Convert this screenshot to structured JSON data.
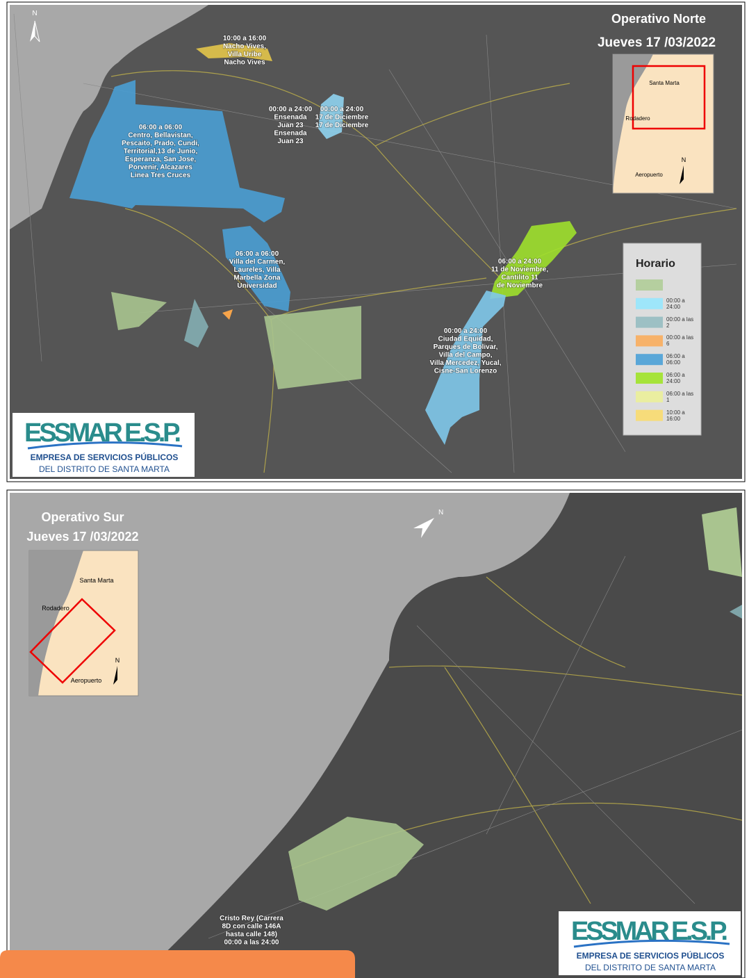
{
  "norte": {
    "north": "N",
    "title": "Operativo Norte",
    "date": "Jueves 17 /03/2022",
    "inset": {
      "labels": [
        "Santa Marta",
        "Rodadero",
        "Aeropuerto"
      ],
      "north": "N"
    },
    "zones": [
      {
        "color": "#e3c54a",
        "lines": [
          "10:00 a 16:00",
          "Nacho Vives,",
          "Villa Uribe",
          "Nacho Vives"
        ]
      },
      {
        "color": "#8fd3f0",
        "lines": [
          "00:00 a 24:00",
          "Ensenada",
          "Juan 23",
          "Ensenada",
          "Juan 23"
        ]
      },
      {
        "color": "#8fd3f0",
        "lines": [
          "00:00 a 24:00",
          "17 de Diciembre",
          "17 de Diciembre"
        ]
      },
      {
        "color": "#4a9fd4",
        "lines": [
          "06:00 a 06:00",
          "Centro, Bellavistan,",
          "Pescaito, Prado, Cundi,",
          "Territorial,13 de Junio,",
          "Esperanza, San Jose,",
          "Porvenir, Alcazares",
          "Linea Tres Cruces"
        ]
      },
      {
        "color": "#4a9fd4",
        "lines": [
          "06:00 a 06:00",
          "Villa del Carmen,",
          "Laureles, Villa",
          "Marbella Zona",
          "Universidad"
        ]
      },
      {
        "color": "#9ee02c",
        "lines": [
          "06:00 a 24:00",
          "11 de Noviembre,",
          "Cantilito 11",
          "de Noviembre"
        ]
      },
      {
        "color": "#7fc8ea",
        "lines": [
          "00:00 a 24:00",
          "Ciudad Equidad,",
          "Parques de Bolivar,",
          "Villa del Campo,",
          "Villa Mercedez, Yucal,",
          "Cisne-San Lorenzo"
        ]
      }
    ],
    "legend": {
      "title": "Horario",
      "items": [
        {
          "color": "#b5cf9f"
        },
        {
          "color": "#9ee6fa",
          "label": "00:00 a 24:00"
        },
        {
          "color": "#9dc0c4",
          "label": "00:00 a las 2"
        },
        {
          "color": "#f7b26a",
          "label": "00:00 a las 6"
        },
        {
          "color": "#5aa7d8",
          "label": "06:00 a 06:00"
        },
        {
          "color": "#a6e33a",
          "label": "06:00 a 24:00"
        },
        {
          "color": "#eaeea0",
          "label": "06:00 a las 1"
        },
        {
          "color": "#f7dc7a",
          "label": "10:00 a 16:00"
        }
      ]
    },
    "logo": {
      "name": "ESSMAR E.S.P.",
      "line1": "EMPRESA DE SERVICIOS PÚBLICOS",
      "line2": "DEL DISTRITO DE SANTA MARTA"
    }
  },
  "sur": {
    "title": "Operativo Sur",
    "date": "Jueves 17 /03/2022",
    "north": "N",
    "inset": {
      "labels": [
        "Santa Marta",
        "Rodadero",
        "Aeropuerto"
      ],
      "north": "N"
    },
    "zones": [
      {
        "color": "#a9c48f",
        "lines": [
          "Cristo Rey (Carrera",
          "8D con calle 146A",
          "hasta calle 148)",
          "00:00 a las 24:00"
        ]
      }
    ],
    "logo": {
      "name": "ESSMAR E.S.P.",
      "line1": "EMPRESA DE SERVICIOS PÚBLICOS",
      "line2": "DEL DISTRITO DE SANTA MARTA"
    }
  }
}
